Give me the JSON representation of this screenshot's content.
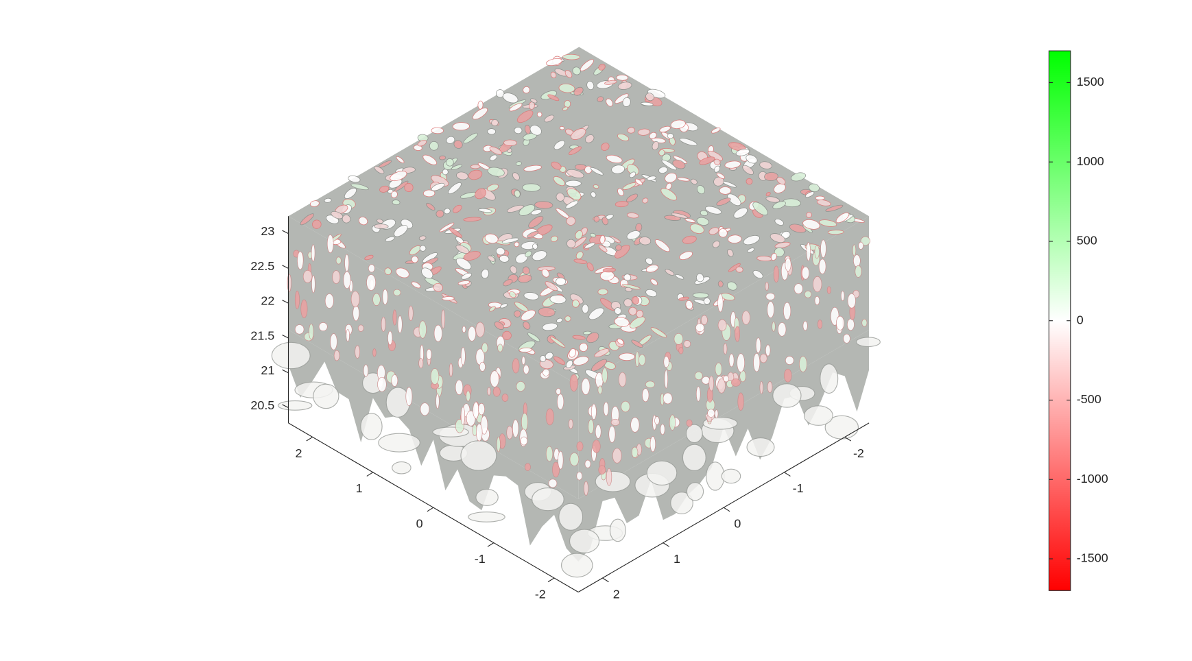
{
  "chart_data": {
    "type": "isosurface3d",
    "xlim": [
      -2.4,
      2.4
    ],
    "xticks": [
      -2,
      -1,
      0,
      1,
      2
    ],
    "ylim": [
      -2.4,
      2.4
    ],
    "yticks": [
      -2,
      -1,
      0,
      1,
      2
    ],
    "zlim": [
      20.28,
      23.25
    ],
    "zticks": [
      20.5,
      21,
      21.5,
      22,
      22.5,
      23
    ],
    "surface_color": "#b4b7b3",
    "colorbar": {
      "clim": [
        -1700,
        1700
      ],
      "ticks": [
        -1500,
        -1000,
        -500,
        0,
        500,
        1000,
        1500
      ],
      "colors": [
        "#ff0000",
        "#ffffff",
        "#00ff00"
      ]
    }
  }
}
